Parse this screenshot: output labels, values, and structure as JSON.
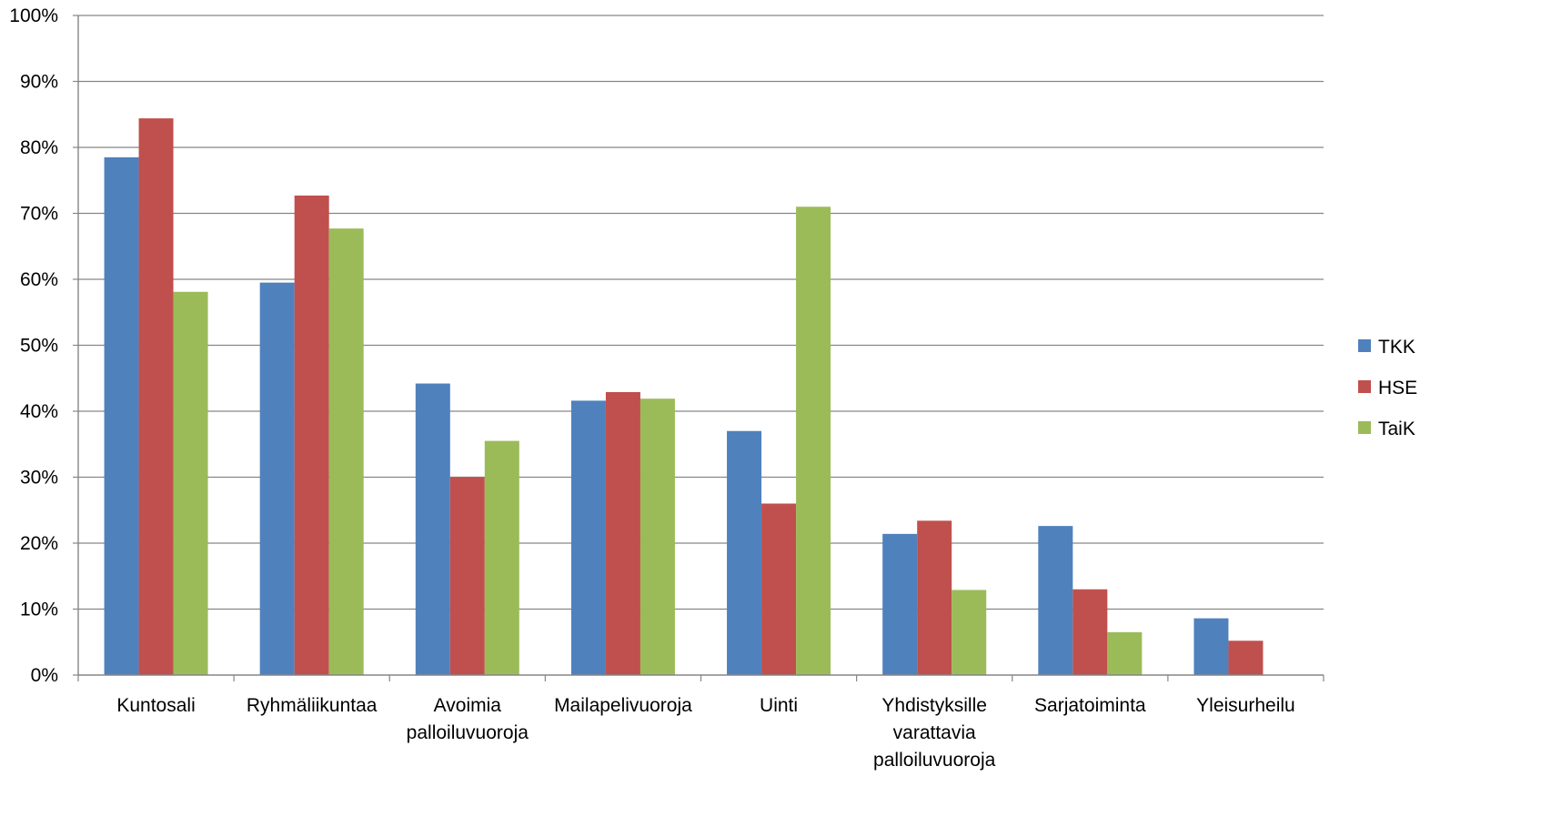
{
  "chart_data": {
    "type": "bar",
    "title": "",
    "xlabel": "",
    "ylabel": "",
    "ylim": [
      0,
      100
    ],
    "y_ticks": [
      "0%",
      "10%",
      "20%",
      "30%",
      "40%",
      "50%",
      "60%",
      "70%",
      "80%",
      "90%",
      "100%"
    ],
    "grid": true,
    "legend_position": "right",
    "categories": [
      [
        "Kuntosali"
      ],
      [
        "Ryhmäliikuntaa"
      ],
      [
        "Avoimia",
        "palloiluvuoroja"
      ],
      [
        "Mailapelivuoroja"
      ],
      [
        "Uinti"
      ],
      [
        "Yhdistyksille",
        "varattavia",
        "palloiluvuoroja"
      ],
      [
        "Sarjatoiminta"
      ],
      [
        "Yleisurheilu"
      ]
    ],
    "series": [
      {
        "name": "TKK",
        "color": "#4F81BD",
        "values": [
          78.5,
          59.5,
          44.2,
          41.6,
          37.0,
          21.4,
          22.6,
          8.6
        ]
      },
      {
        "name": "HSE",
        "color": "#C0504D",
        "values": [
          84.4,
          72.7,
          30.0,
          42.9,
          26.0,
          23.4,
          13.0,
          5.2
        ]
      },
      {
        "name": "TaiK",
        "color": "#9BBB59",
        "values": [
          58.1,
          67.7,
          35.5,
          41.9,
          71.0,
          12.9,
          6.5,
          0
        ]
      }
    ]
  }
}
